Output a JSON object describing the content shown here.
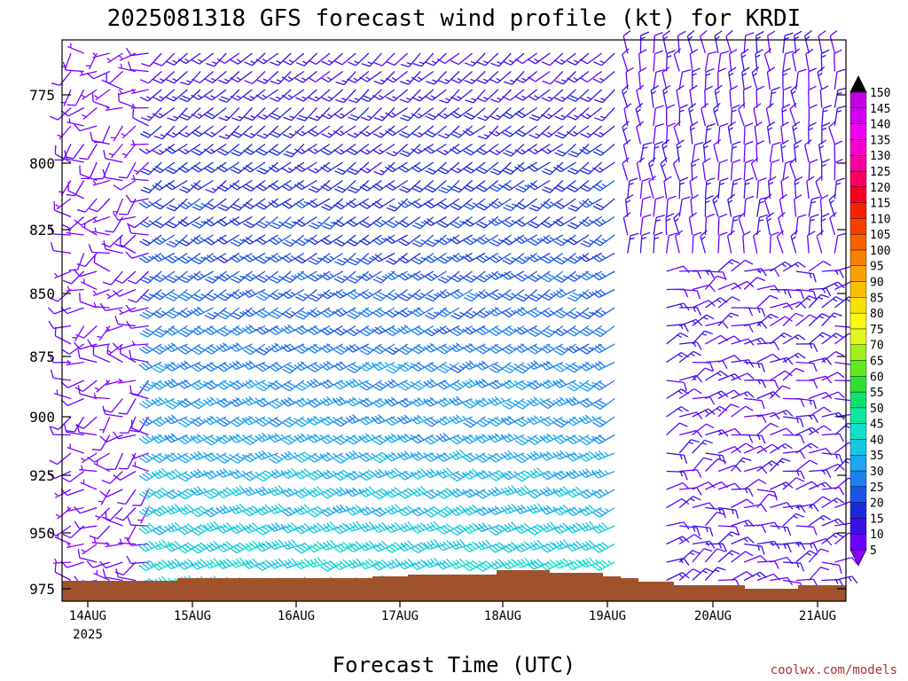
{
  "chart_data": {
    "type": "wind-barb-profile",
    "title": "2025081318 GFS forecast wind profile (kt) for KRDI",
    "xlabel": "Forecast Time (UTC)",
    "ylabel": "",
    "x_ticks": [
      "14AUG",
      "15AUG",
      "16AUG",
      "17AUG",
      "18AUG",
      "19AUG",
      "20AUG",
      "21AUG"
    ],
    "x_year_label": "2025",
    "y_ticks": [
      "775",
      "800",
      "825",
      "850",
      "875",
      "900",
      "925",
      "950",
      "975"
    ],
    "y_range_hpa": [
      752,
      978
    ],
    "colorbar": {
      "levels": [
        "5",
        "10",
        "15",
        "20",
        "25",
        "30",
        "35",
        "40",
        "45",
        "50",
        "55",
        "60",
        "65",
        "70",
        "75",
        "80",
        "85",
        "90",
        "95",
        "100",
        "105",
        "110",
        "115",
        "120",
        "125",
        "130",
        "135",
        "140",
        "145",
        "150"
      ],
      "colors": [
        "#8a00ff",
        "#6a00ff",
        "#3a10e8",
        "#1a2ad8",
        "#1a55e8",
        "#1f7ff0",
        "#1ea6f0",
        "#14c8e0",
        "#10e0c8",
        "#10e8a0",
        "#10e070",
        "#30e030",
        "#60e820",
        "#a0f020",
        "#e0f820",
        "#f8f810",
        "#f8e000",
        "#f8c000",
        "#f8a000",
        "#f88000",
        "#f86000",
        "#f84000",
        "#f82000",
        "#f80020",
        "#f80060",
        "#f800a0",
        "#f800d0",
        "#f000f0",
        "#d000f0",
        "#c000e0"
      ]
    },
    "terrain_color": "#a0522d",
    "note_units": "kt"
  },
  "credit": "coolwx.com/models"
}
